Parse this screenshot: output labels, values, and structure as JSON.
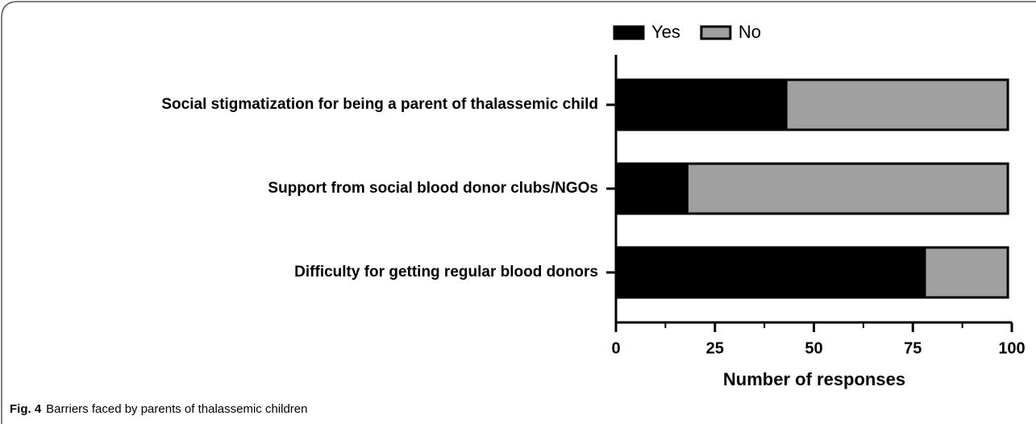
{
  "chart_data": {
    "type": "stacked-barh",
    "categories": [
      "Social stigmatization for being a parent of thalassemic child",
      "Support from social blood donor clubs/NGOs",
      "Difficulty for getting regular blood donors"
    ],
    "series": [
      {
        "name": "Yes",
        "color": "#000000",
        "values": [
          43,
          18,
          78
        ]
      },
      {
        "name": "No",
        "color": "#a0a0a0",
        "values": [
          56,
          81,
          21
        ]
      }
    ],
    "xlabel": "Number of responses",
    "xlim": [
      0,
      100
    ],
    "xticks": [
      0,
      25,
      50,
      75,
      100
    ],
    "xminorticks": [
      12.5,
      37.5,
      62.5,
      87.5
    ],
    "legend": "top"
  },
  "caption": {
    "label": "Fig. 4",
    "text": "Barriers faced by parents of thalassemic children"
  }
}
